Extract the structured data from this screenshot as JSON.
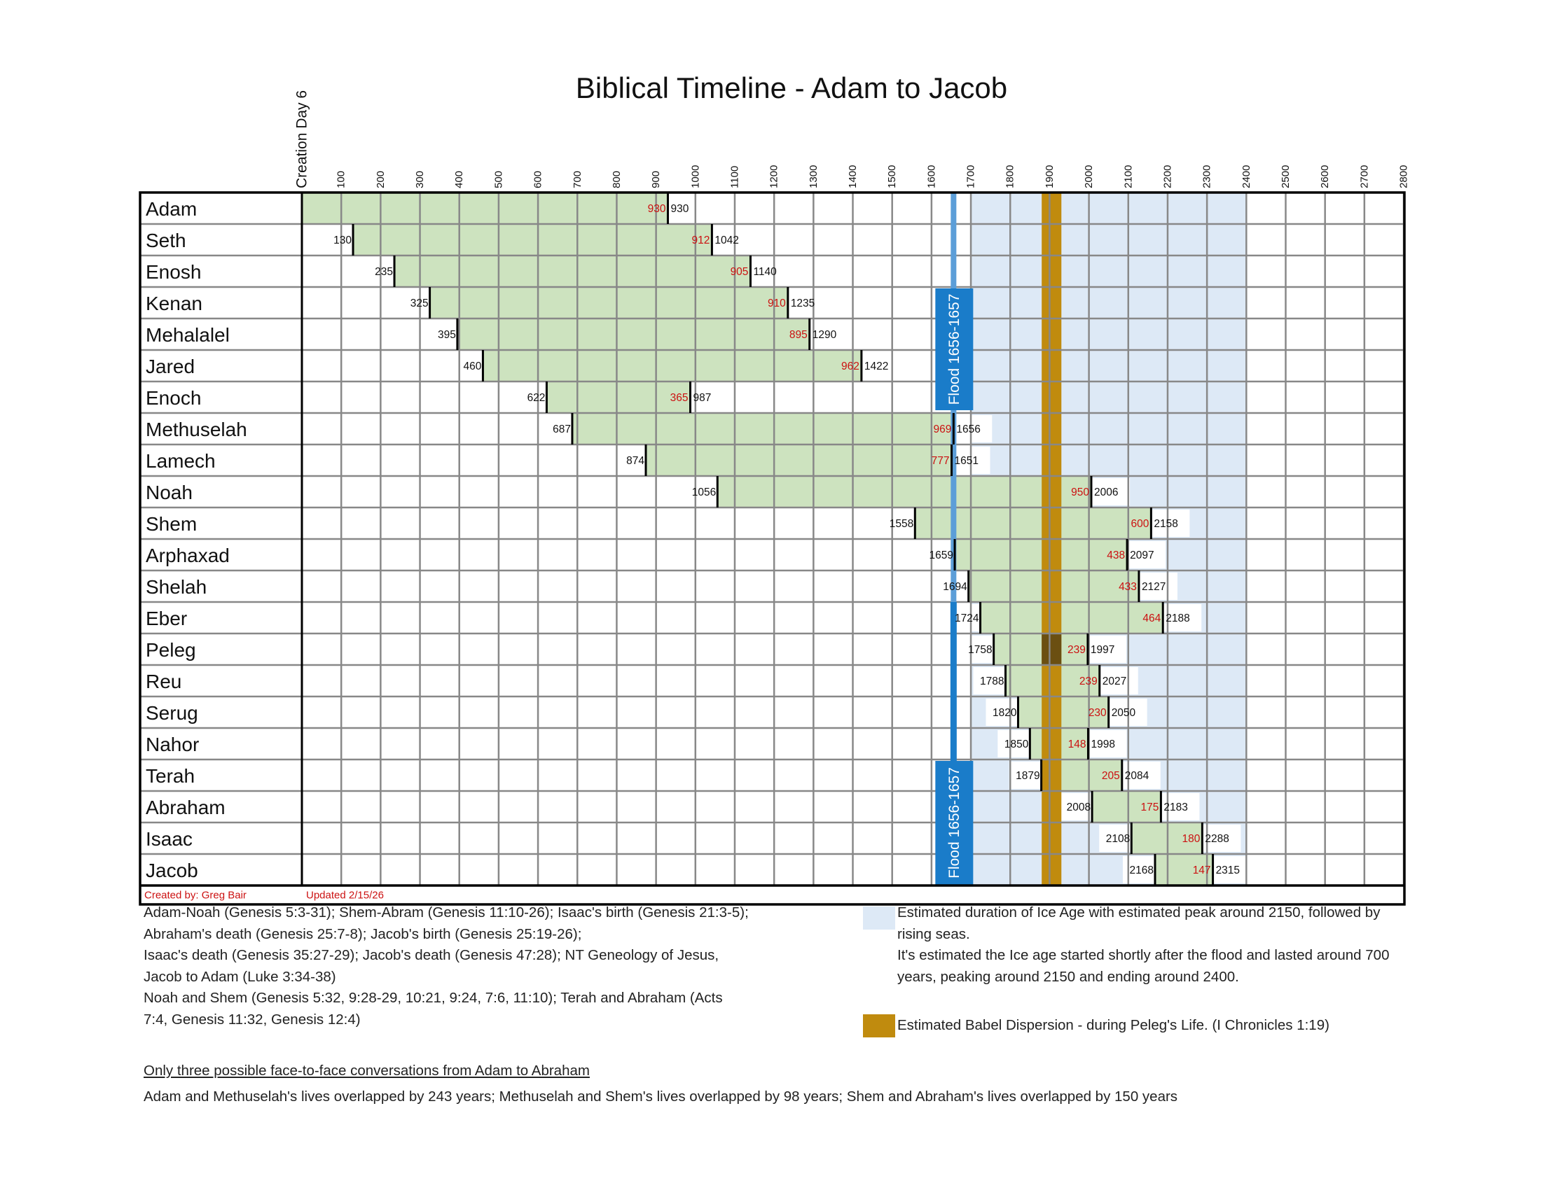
{
  "chart_data": {
    "type": "timeline-gantt",
    "title": "Biblical Timeline - Adam to Jacob",
    "x_axis": {
      "first_label": "Creation Day 6",
      "ticks": [
        "100",
        "200",
        "300",
        "400",
        "500",
        "600",
        "700",
        "800",
        "900",
        "1000",
        "1100",
        "1200",
        "1300",
        "1400",
        "1500",
        "1600",
        "1700",
        "1800",
        "1900",
        "2000",
        "2100",
        "2200",
        "2300",
        "2400",
        "2500",
        "2600",
        "2700",
        "2800"
      ],
      "range": [
        0,
        2800
      ],
      "grid": true
    },
    "people": [
      {
        "name": "Adam",
        "birth": 0,
        "death": 930,
        "age": "930",
        "birth_label": "",
        "death_label": "930"
      },
      {
        "name": "Seth",
        "birth": 130,
        "death": 1042,
        "age": "912",
        "birth_label": "130",
        "death_label": "1042"
      },
      {
        "name": "Enosh",
        "birth": 235,
        "death": 1140,
        "age": "905",
        "birth_label": "235",
        "death_label": "1140"
      },
      {
        "name": "Kenan",
        "birth": 325,
        "death": 1235,
        "age": "910",
        "birth_label": "325",
        "death_label": "1235"
      },
      {
        "name": "Mehalalel",
        "birth": 395,
        "death": 1290,
        "age": "895",
        "birth_label": "395",
        "death_label": "1290"
      },
      {
        "name": "Jared",
        "birth": 460,
        "death": 1422,
        "age": "962",
        "birth_label": "460",
        "death_label": "1422"
      },
      {
        "name": "Enoch",
        "birth": 622,
        "death": 987,
        "age": "365",
        "birth_label": "622",
        "death_label": "987"
      },
      {
        "name": "Methuselah",
        "birth": 687,
        "death": 1656,
        "age": "969",
        "birth_label": "687",
        "death_label": "1656"
      },
      {
        "name": "Lamech",
        "birth": 874,
        "death": 1651,
        "age": "777",
        "birth_label": "874",
        "death_label": "1651"
      },
      {
        "name": "Noah",
        "birth": 1056,
        "death": 2006,
        "age": "950",
        "birth_label": "1056",
        "death_label": "2006"
      },
      {
        "name": "Shem",
        "birth": 1558,
        "death": 2158,
        "age": "600",
        "birth_label": "1558",
        "death_label": "2158"
      },
      {
        "name": "Arphaxad",
        "birth": 1659,
        "death": 2097,
        "age": "438",
        "birth_label": "1659",
        "death_label": "2097"
      },
      {
        "name": "Shelah",
        "birth": 1694,
        "death": 2127,
        "age": "433",
        "birth_label": "1694",
        "death_label": "2127"
      },
      {
        "name": "Eber",
        "birth": 1724,
        "death": 2188,
        "age": "464",
        "birth_label": "1724",
        "death_label": "2188"
      },
      {
        "name": "Peleg",
        "birth": 1758,
        "death": 1997,
        "age": "239",
        "birth_label": "1758",
        "death_label": "1997"
      },
      {
        "name": "Reu",
        "birth": 1788,
        "death": 2027,
        "age": "239",
        "birth_label": "1788",
        "death_label": "2027"
      },
      {
        "name": "Serug",
        "birth": 1820,
        "death": 2050,
        "age": "230",
        "birth_label": "1820",
        "death_label": "2050"
      },
      {
        "name": "Nahor",
        "birth": 1850,
        "death": 1998,
        "age": "148",
        "birth_label": "1850",
        "death_label": "1998"
      },
      {
        "name": "Terah",
        "birth": 1879,
        "death": 2084,
        "age": "205",
        "birth_label": "1879",
        "death_label": "2084"
      },
      {
        "name": "Abraham",
        "birth": 2008,
        "death": 2183,
        "age": "175",
        "birth_label": "2008",
        "death_label": "2183"
      },
      {
        "name": "Isaac",
        "birth": 2108,
        "death": 2288,
        "age": "180",
        "birth_label": "2108",
        "death_label": "2288"
      },
      {
        "name": "Jacob",
        "birth": 2168,
        "death": 2315,
        "age": "147",
        "birth_label": "2168",
        "death_label": "2315"
      }
    ],
    "flood": {
      "start": 1656,
      "end": 1657,
      "label": "Flood 1656-1657"
    },
    "ice_age": {
      "start": 1700,
      "end": 2400
    },
    "babel": {
      "start": 1880,
      "end": 1930
    },
    "footer": {
      "created_by": "Created by: Greg Bair",
      "updated": "Updated 2/15/26"
    },
    "colors": {
      "lifespan": "#cde3bf",
      "ice_age": "#dde9f6",
      "babel": "#c08b0e",
      "babel_overlap": "#6b4f11",
      "flood": "#1a7cc9",
      "flood_line": "#5c9ed8",
      "age_text": "#cc1111",
      "grid": "#888888"
    }
  },
  "notes": {
    "references": [
      "Adam-Noah (Genesis 5:3-31); Shem-Abram (Genesis 11:10-26); Isaac's birth (Genesis 21:3-5);",
      "Abraham's death (Genesis 25:7-8); Jacob's birth (Genesis 25:19-26);",
      "Isaac's death (Genesis 35:27-29); Jacob's death (Genesis 47:28); NT Geneology of Jesus,",
      "Jacob to Adam (Luke 3:34-38)",
      "Noah and Shem (Genesis 5:32, 9:28-29, 10:21, 9:24, 7:6, 11:10); Terah and Abraham (Acts",
      "7:4, Genesis 11:32, Genesis 12:4)"
    ],
    "ice_age_legend": [
      "Estimated duration of Ice Age with estimated peak around 2150, followed by",
      "rising seas.",
      "It's estimated the Ice age started shortly after the flood and lasted around 700",
      "years, peaking around 2150 and ending around 2400."
    ],
    "babel_legend": "Estimated Babel Dispersion - during Peleg's Life. (I Chronicles 1:19)",
    "conversations_heading": "Only three possible face-to-face conversations from Adam to Abraham",
    "conversations_text": "Adam and Methuselah's lives overlapped by 243 years; Methuselah and Shem's lives overlapped by 98 years; Shem and Abraham's lives overlapped by 150 years"
  }
}
